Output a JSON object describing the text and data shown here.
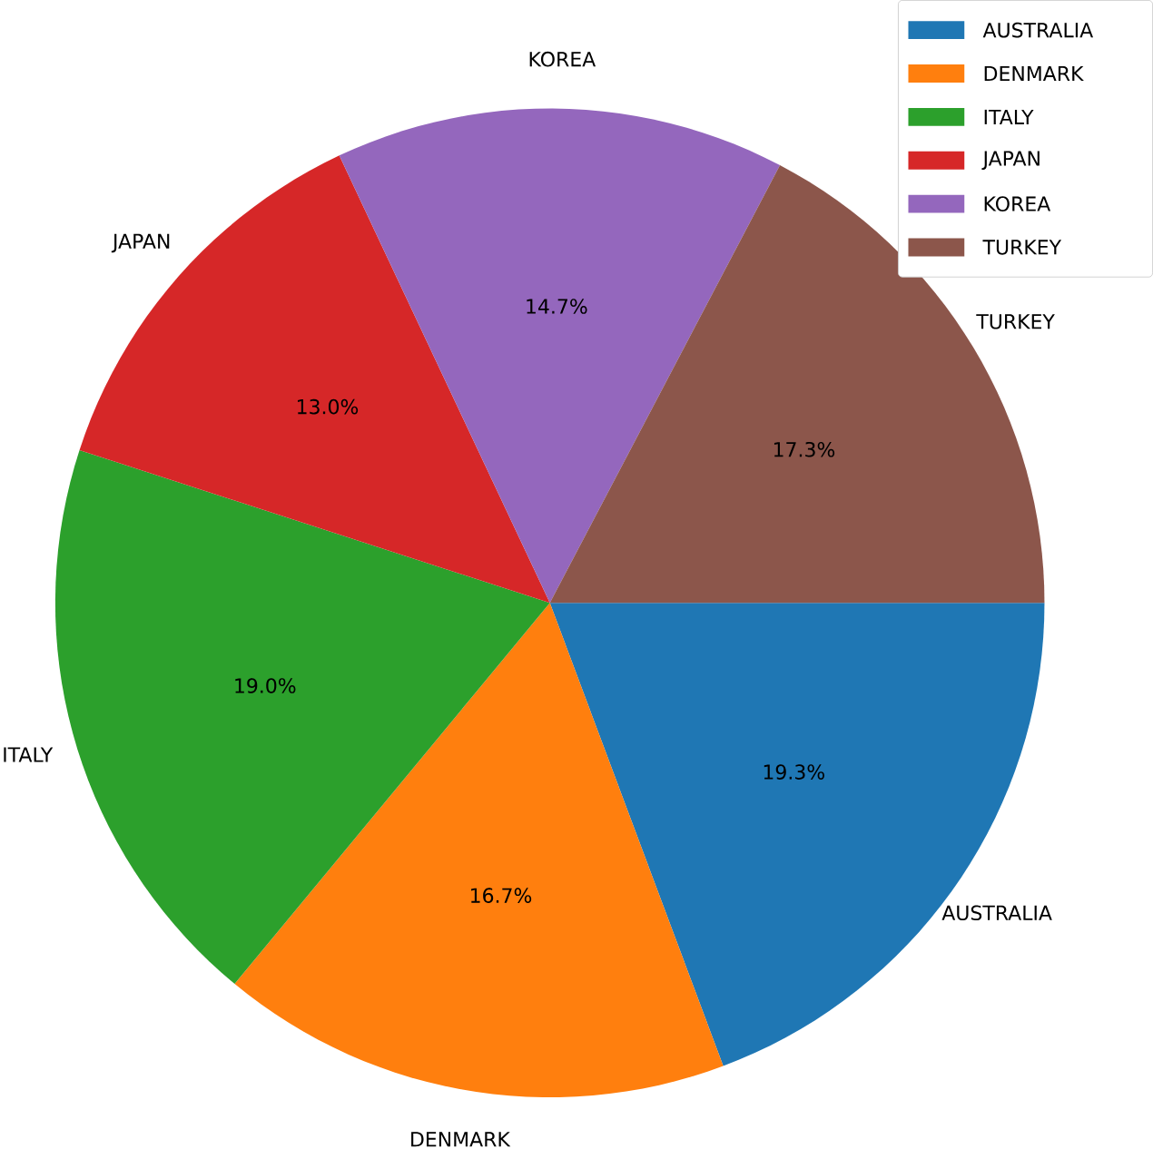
{
  "chart_data": {
    "type": "pie",
    "categories": [
      "AUSTRALIA",
      "DENMARK",
      "ITALY",
      "JAPAN",
      "KOREA",
      "TURKEY"
    ],
    "values": [
      19.3,
      16.7,
      19.0,
      13.0,
      14.7,
      17.3
    ],
    "colors": [
      "#1f77b4",
      "#ff7f0e",
      "#2ca02c",
      "#d62728",
      "#9467bd",
      "#8c564b"
    ],
    "value_labels": [
      "19.3%",
      "16.7%",
      "19.0%",
      "13.0%",
      "14.7%",
      "17.3%"
    ],
    "legend": "top right"
  }
}
